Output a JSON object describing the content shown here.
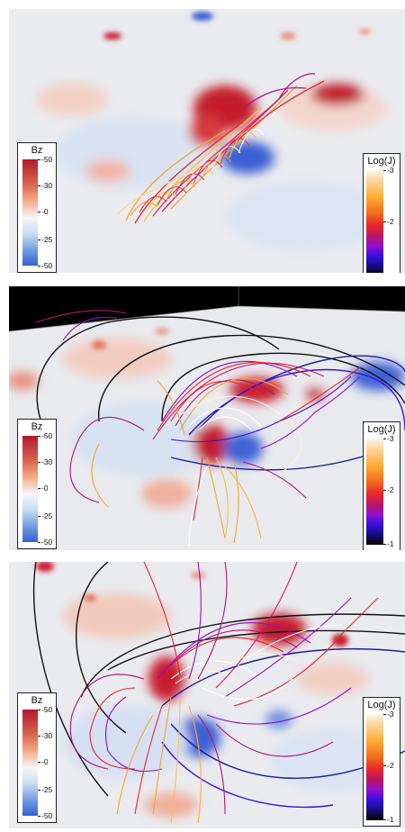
{
  "colorbar_bz": {
    "title": "Bz",
    "ticks": [
      "-50",
      "-30",
      "-0",
      "-25",
      "-50"
    ],
    "colors": [
      "#b2182b",
      "#f4a582",
      "#f7f7f7",
      "#6d9be0",
      "#3a5fd1"
    ]
  },
  "colorbar_logj": {
    "title": "Log(J)",
    "ticks": [
      "-3",
      "-2",
      "-1"
    ],
    "colors": [
      "#fff5e8",
      "#fdae35",
      "#e8262c",
      "#8e0fd0",
      "#1b0f9a",
      "#050505"
    ]
  }
}
